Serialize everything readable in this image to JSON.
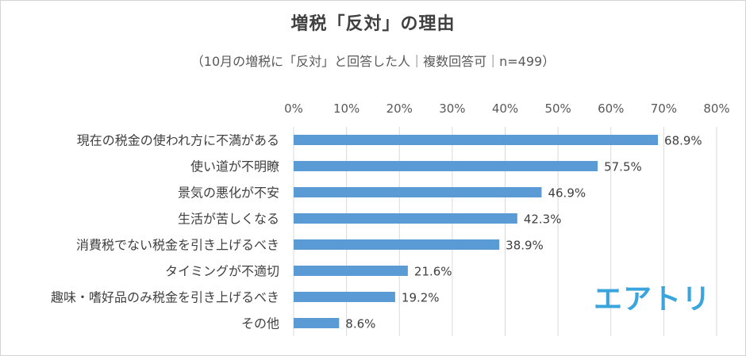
{
  "chart_data": {
    "type": "bar",
    "orientation": "horizontal",
    "title": "増税「反対」の理由",
    "subtitle": "（10月の増税に「反対」と回答した人｜複数回答可｜n=499）",
    "categories": [
      "現在の税金の使われ方に不満がある",
      "使い道が不明瞭",
      "景気の悪化が不安",
      "生活が苦しくなる",
      "消費税でない税金を引き上げるべき",
      "タイミングが不適切",
      "趣味・嗜好品のみ税金を引き上げるべき",
      "その他"
    ],
    "values": [
      68.9,
      57.5,
      46.9,
      42.3,
      38.9,
      21.6,
      19.2,
      8.6
    ],
    "data_labels": [
      "68.9%",
      "57.5%",
      "46.9%",
      "42.3%",
      "38.9%",
      "21.6%",
      "19.2%",
      "8.6%"
    ],
    "xlim": [
      0,
      80
    ],
    "xticks": [
      0,
      10,
      20,
      30,
      40,
      50,
      60,
      70,
      80
    ],
    "xtick_labels": [
      "0%",
      "10%",
      "20%",
      "30%",
      "40%",
      "50%",
      "60%",
      "70%",
      "80%"
    ],
    "xaxis_position": "top",
    "grid": true,
    "legend": "none",
    "bar_color": "#5b9bd5",
    "grid_color": "#d9d9d9"
  },
  "logo_text": "エアトリ",
  "colors": {
    "logo": "#3aa5dc",
    "text": "#404040"
  }
}
